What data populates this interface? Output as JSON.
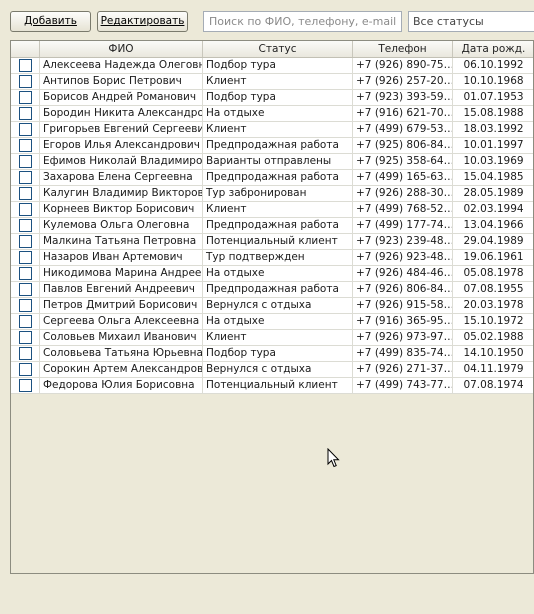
{
  "toolbar": {
    "add_label": "Добавить",
    "edit_label": "Редактировать",
    "search_placeholder": "Поиск по ФИО, телефону, e-mail",
    "status_filter": "Все статусы"
  },
  "table": {
    "columns": [
      "",
      "ФИО",
      "Статус",
      "Телефон",
      "Дата рожд."
    ],
    "rows": [
      [
        "Алексеева Надежда Олеговна",
        "Подбор тура",
        "+7 (926) 890-75…",
        "06.10.1992"
      ],
      [
        "Антипов Борис Петрович",
        "Клиент",
        "+7 (926) 257-20…",
        "10.10.1968"
      ],
      [
        "Борисов Андрей Романович",
        "Подбор тура",
        "+7 (923) 393-59…",
        "01.07.1953"
      ],
      [
        "Бородин Никита Александро…",
        "На отдыхе",
        "+7 (916) 621-70…",
        "15.08.1988"
      ],
      [
        "Григорьев Евгений Сергеевич",
        "Клиент",
        "+7 (499) 679-53…",
        "18.03.1992"
      ],
      [
        "Егоров Илья Александрович",
        "Предпродажная работа",
        "+7 (925) 806-84…",
        "10.01.1997"
      ],
      [
        "Ефимов Николай Владимиро…",
        "Варианты отправлены",
        "+7 (925) 358-64…",
        "10.03.1969"
      ],
      [
        "Захарова Елена Сергеевна",
        "Предпродажная работа",
        "+7 (499) 165-63…",
        "15.04.1985"
      ],
      [
        "Калугин Владимир Викторович",
        "Тур забронирован",
        "+7 (926) 288-30…",
        "28.05.1989"
      ],
      [
        "Корнеев Виктор Борисович",
        "Клиент",
        "+7 (499) 768-52…",
        "02.03.1994"
      ],
      [
        "Кулемова Ольга Олеговна",
        "Предпродажная работа",
        "+7 (499) 177-74…",
        "13.04.1966"
      ],
      [
        "Малкина Татьяна Петровна",
        "Потенциальный клиент",
        "+7 (923) 239-48…",
        "29.04.1989"
      ],
      [
        "Назаров Иван Артемович",
        "Тур подтвержден",
        "+7 (926) 923-48…",
        "19.06.1961"
      ],
      [
        "Никодимова Марина Андрее…",
        "На отдыхе",
        "+7 (926) 484-46…",
        "05.08.1978"
      ],
      [
        "Павлов Евгений Андреевич",
        "Предпродажная работа",
        "+7 (926) 806-84…",
        "07.08.1955"
      ],
      [
        "Петров Дмитрий Борисович",
        "Вернулся с отдыха",
        "+7 (926) 915-58…",
        "20.03.1978"
      ],
      [
        "Сергеева Ольга Алексеевна",
        "На отдыхе",
        "+7 (916) 365-95…",
        "15.10.1972"
      ],
      [
        "Соловьев Михаил Иванович",
        "Клиент",
        "+7 (926) 973-97…",
        "05.02.1988"
      ],
      [
        "Соловьева Татьяна Юрьевна",
        "Подбор тура",
        "+7 (499) 835-74…",
        "14.10.1950"
      ],
      [
        "Сорокин Артем Александрович",
        "Вернулся с отдыха",
        "+7 (926) 271-37…",
        "04.11.1979"
      ],
      [
        "Федорова Юлия Борисовна",
        "Потенциальный клиент",
        "+7 (499) 743-77…",
        "07.08.1974"
      ]
    ]
  }
}
